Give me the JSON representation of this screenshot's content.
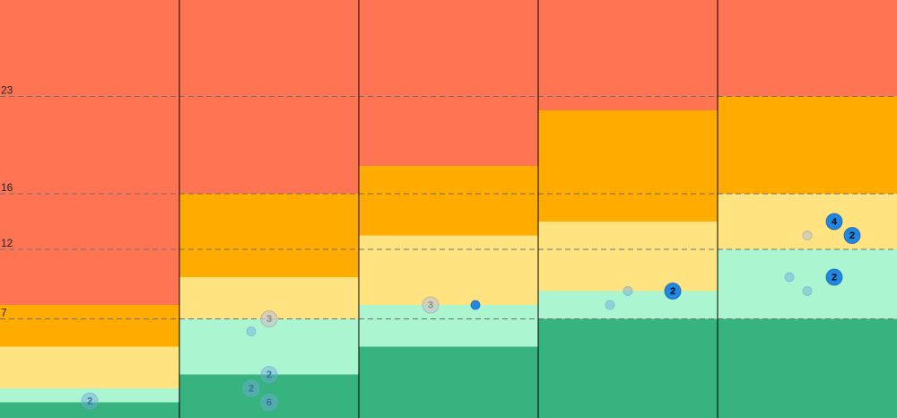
{
  "chart_data": {
    "type": "area",
    "title": "",
    "xlabel": "",
    "ylabel": "",
    "ylim": [
      0,
      30
    ],
    "grid": true,
    "y_ticks": [
      7,
      12,
      16,
      23
    ],
    "columns": 5,
    "band_colors": [
      "#36b37e",
      "#abf5d1",
      "#ffe380",
      "#ffab00",
      "#ff7452"
    ],
    "bands": [
      {
        "column": 1,
        "thresholds": [
          1,
          2,
          5,
          8
        ]
      },
      {
        "column": 2,
        "thresholds": [
          3,
          7,
          10,
          16
        ]
      },
      {
        "column": 3,
        "thresholds": [
          5,
          8,
          13,
          18
        ]
      },
      {
        "column": 4,
        "thresholds": [
          7,
          9,
          14,
          22
        ]
      },
      {
        "column": 5,
        "thresholds": [
          7,
          12,
          16,
          23
        ]
      }
    ],
    "points": [
      {
        "column": 1,
        "offset": 0.0,
        "y": 1.1,
        "count": "2",
        "style": "faded"
      },
      {
        "column": 2,
        "offset": 0.0,
        "y": 7.0,
        "count": "3",
        "style": "ghost"
      },
      {
        "column": 2,
        "offset": -0.2,
        "y": 6.1,
        "count": "",
        "style": "faded"
      },
      {
        "column": 2,
        "offset": 0.0,
        "y": 3.0,
        "count": "2",
        "style": "faded"
      },
      {
        "column": 2,
        "offset": -0.2,
        "y": 2.0,
        "count": "2",
        "style": "faded"
      },
      {
        "column": 2,
        "offset": 0.0,
        "y": 1.0,
        "count": "6",
        "style": "faded"
      },
      {
        "column": 3,
        "offset": -0.2,
        "y": 8.0,
        "count": "3",
        "style": "ghost"
      },
      {
        "column": 3,
        "offset": 0.3,
        "y": 8.0,
        "count": "",
        "style": "solid"
      },
      {
        "column": 4,
        "offset": 0.5,
        "y": 9.0,
        "count": "2",
        "style": "solid"
      },
      {
        "column": 4,
        "offset": 0.0,
        "y": 9.0,
        "count": "",
        "style": "faded"
      },
      {
        "column": 4,
        "offset": -0.2,
        "y": 8.0,
        "count": "",
        "style": "faded"
      },
      {
        "column": 5,
        "offset": 0.3,
        "y": 14.0,
        "count": "4",
        "style": "solid"
      },
      {
        "column": 5,
        "offset": 0.5,
        "y": 13.0,
        "count": "2",
        "style": "solid"
      },
      {
        "column": 5,
        "offset": 0.0,
        "y": 13.0,
        "count": "",
        "style": "ghost"
      },
      {
        "column": 5,
        "offset": 0.3,
        "y": 10.0,
        "count": "2",
        "style": "solid"
      },
      {
        "column": 5,
        "offset": -0.2,
        "y": 10.0,
        "count": "",
        "style": "faded"
      },
      {
        "column": 5,
        "offset": 0.0,
        "y": 9.0,
        "count": "",
        "style": "faded"
      }
    ]
  }
}
